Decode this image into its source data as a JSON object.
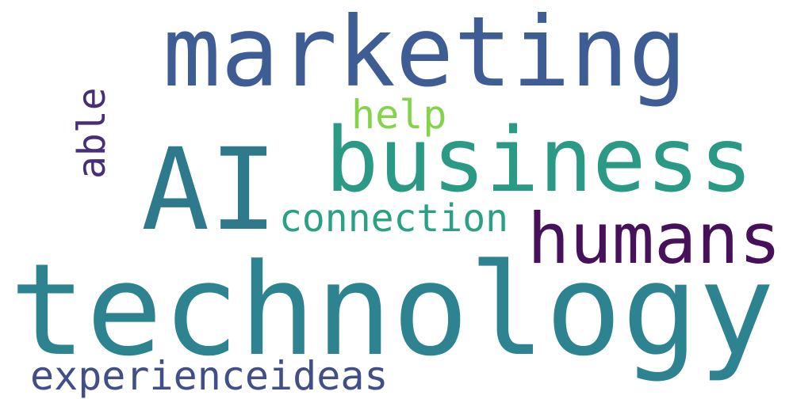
{
  "words": [
    {
      "text": "marketing",
      "color": "#3e5d94"
    },
    {
      "text": "AI",
      "color": "#2e7a8c"
    },
    {
      "text": "business",
      "color": "#2a9a86"
    },
    {
      "text": "humans",
      "color": "#46105a"
    },
    {
      "text": "technology",
      "color": "#2d8490"
    },
    {
      "text": "help",
      "color": "#84d34a"
    },
    {
      "text": "connection",
      "color": "#2aa184"
    },
    {
      "text": "able",
      "color": "#482e78"
    },
    {
      "text": "experienceideas",
      "color": "#414e87"
    }
  ]
}
